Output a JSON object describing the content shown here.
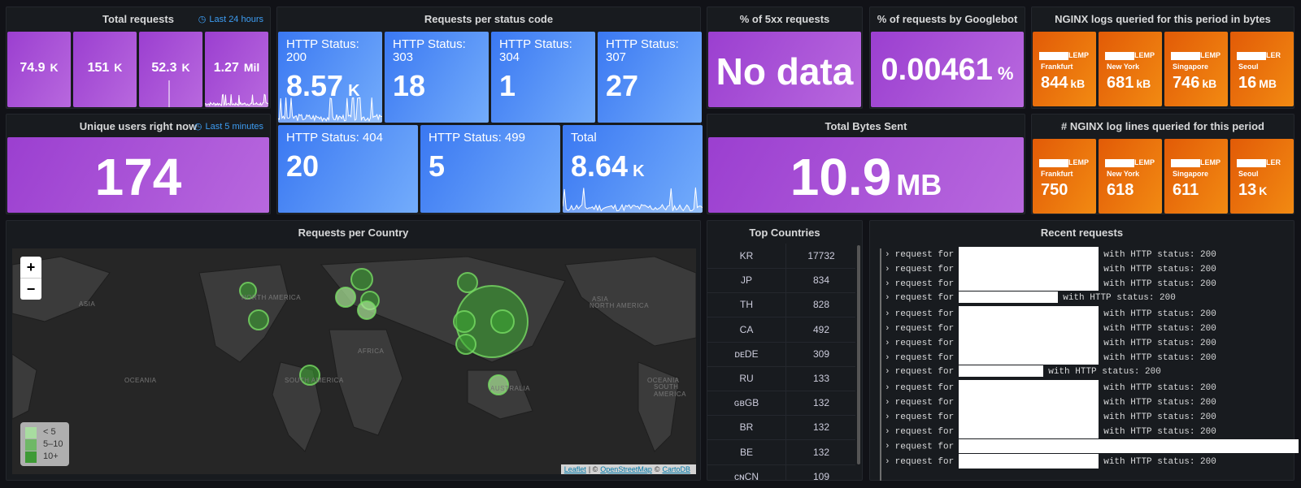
{
  "panels": {
    "total_requests": {
      "title": "Total requests",
      "range": "Last 24 hours",
      "stats": [
        {
          "value": "74.9",
          "unit": "K"
        },
        {
          "value": "151",
          "unit": "K"
        },
        {
          "value": "52.3",
          "unit": "K"
        },
        {
          "value": "1.27",
          "unit": "Mil"
        }
      ]
    },
    "unique_users": {
      "title": "Unique users right now",
      "range": "Last 5 minutes",
      "value": "174"
    },
    "status_codes": {
      "title": "Requests per status code",
      "stats": [
        {
          "label": "HTTP Status: 200",
          "value": "8.57",
          "unit": "K"
        },
        {
          "label": "HTTP Status: 303",
          "value": "18"
        },
        {
          "label": "HTTP Status: 304",
          "value": "1"
        },
        {
          "label": "HTTP Status: 307",
          "value": "27"
        },
        {
          "label": "HTTP Status: 404",
          "value": "20"
        },
        {
          "label": "HTTP Status: 499",
          "value": "5"
        },
        {
          "label": "Total",
          "value": "8.64",
          "unit": "K"
        }
      ]
    },
    "pct_5xx": {
      "title": "% of 5xx requests",
      "value": "No data"
    },
    "pct_googlebot": {
      "title": "% of requests by Googlebot",
      "value": "0.00461",
      "unit": "%"
    },
    "nginx_bytes": {
      "title": "NGINX logs queried for this period in bytes",
      "stats": [
        {
          "tag": "LEMP",
          "city": "Frankfurt",
          "value": "844",
          "unit": "kB"
        },
        {
          "tag": "LEMP",
          "city": "New York",
          "value": "681",
          "unit": "kB"
        },
        {
          "tag": "LEMP",
          "city": "Singapore",
          "value": "746",
          "unit": "kB"
        },
        {
          "tag": "LER",
          "city": "Seoul",
          "value": "16",
          "unit": "MB"
        }
      ]
    },
    "total_bytes": {
      "title": "Total Bytes Sent",
      "value": "10.9",
      "unit": "MB"
    },
    "nginx_lines": {
      "title": "# NGINX log lines queried for this period",
      "stats": [
        {
          "tag": "LEMP",
          "city": "Frankfurt",
          "value": "750"
        },
        {
          "tag": "LEMP",
          "city": "New York",
          "value": "618"
        },
        {
          "tag": "LEMP",
          "city": "Singapore",
          "value": "611"
        },
        {
          "tag": "LER",
          "city": "Seoul",
          "value": "13",
          "unit": "K"
        }
      ]
    },
    "map": {
      "title": "Requests per Country",
      "zoom_in": "+",
      "zoom_out": "−",
      "labels": [
        "ASIA",
        "NORTH AMERICA",
        "AFRICA",
        "ASIA",
        "NORTH AMERICA",
        "OCEANIA",
        "SOUTH AMERICA",
        "AUSTRALIA",
        "OCEANIA",
        "SOUTH AMERICA"
      ],
      "legend": [
        "< 5",
        "5–10",
        "10+"
      ],
      "attribution": {
        "leaflet": "Leaflet",
        "sep": "| ©",
        "osm": "OpenStreetMap",
        "copy": "©",
        "carto": "CartoDB"
      }
    },
    "top_countries": {
      "title": "Top Countries",
      "rows": [
        [
          "KR",
          "17732"
        ],
        [
          "JP",
          "834"
        ],
        [
          "TH",
          "828"
        ],
        [
          "CA",
          "492"
        ],
        [
          "ᴅᴇDE",
          "309"
        ],
        [
          "RU",
          "133"
        ],
        [
          "ɢʙGB",
          "132"
        ],
        [
          "BR",
          "132"
        ],
        [
          "BE",
          "132"
        ],
        [
          "ᴄɴCN",
          "109"
        ]
      ]
    },
    "recent_requests": {
      "title": "Recent requests",
      "prefix": "request for",
      "lines": [
        "with HTTP status: 200",
        "with HTTP status: 200",
        "with HTTP status: 200",
        "with HTTP status: 200",
        "with HTTP status: 200",
        "with HTTP status: 200",
        "with HTTP status: 200",
        "with HTTP status: 200",
        "with HTTP status: 200",
        "with HTTP status: 200",
        "with HTTP status: 200",
        "with HTTP status: 200",
        "with HTTP status: 200",
        null,
        "with HTTP status: 200"
      ]
    }
  }
}
